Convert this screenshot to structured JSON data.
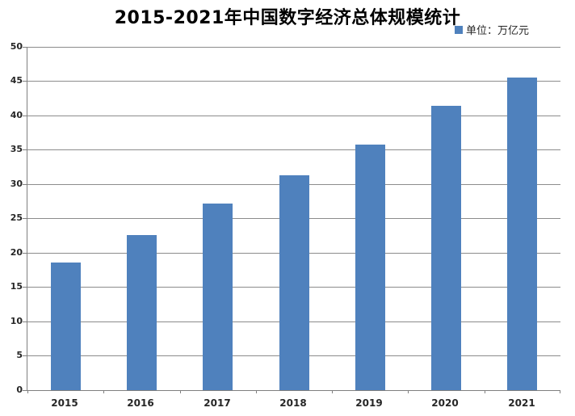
{
  "chart_data": {
    "type": "bar",
    "title": "2015-2021年中国数字经济总体规模统计",
    "categories": [
      "2015",
      "2016",
      "2017",
      "2018",
      "2019",
      "2020",
      "2021"
    ],
    "values": [
      18.6,
      22.6,
      27.2,
      31.3,
      35.8,
      41.4,
      45.5
    ],
    "legend": [
      "单位：万亿元"
    ],
    "legend_position": "top-right",
    "xlabel": "",
    "ylabel": "",
    "ylim": [
      0,
      50
    ],
    "ytick_step": 5,
    "ytick_labels": [
      "0",
      "5",
      "10",
      "15",
      "20",
      "25",
      "30",
      "35",
      "40",
      "45",
      "50"
    ],
    "grid": true,
    "bar_color": "#4f81bd",
    "gridline_color": "#8c8c8c",
    "axis_color": "#7f7f7f",
    "label_color": "#262626",
    "title_color": "#000000"
  }
}
